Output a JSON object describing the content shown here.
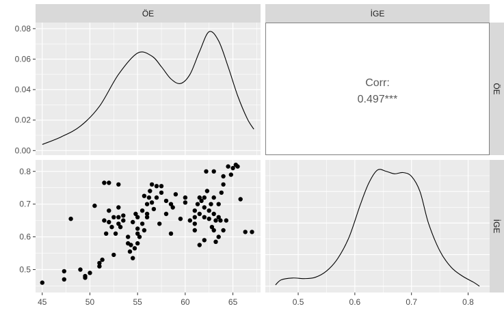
{
  "strips": {
    "col1": "ÖE",
    "col2": "İGE",
    "row1": "ÖE",
    "row2": "İGE"
  },
  "corr": {
    "label": "Corr:",
    "value": "0.497***"
  },
  "colors": {
    "panel_bg": "#ebebeb",
    "grid": "#ffffff",
    "strip_bg": "#d9d9d9",
    "line": "#000000",
    "point": "#000000"
  },
  "chart_data": [
    {
      "type": "line",
      "panel": "density ÖE",
      "x": [
        45,
        47,
        49,
        51,
        53,
        55,
        56.5,
        57.5,
        58.5,
        59.5,
        60.5,
        61.5,
        62.5,
        63.5,
        64.5,
        65.5,
        66.5,
        67.2
      ],
      "values": [
        0.004,
        0.009,
        0.016,
        0.029,
        0.05,
        0.064,
        0.062,
        0.055,
        0.047,
        0.044,
        0.05,
        0.065,
        0.078,
        0.072,
        0.055,
        0.036,
        0.021,
        0.014
      ],
      "xlim": [
        44.3,
        67.9
      ],
      "ylim": [
        -0.003,
        0.084
      ],
      "y_ticks": [
        0.0,
        0.02,
        0.04,
        0.06,
        0.08
      ],
      "y_tick_labels": [
        "0.00",
        "0.02",
        "0.04",
        "0.06",
        "0.08"
      ],
      "grid": true
    },
    {
      "type": "scatter",
      "panel": "ÖE vs İGE",
      "points": [
        [
          45,
          0.46
        ],
        [
          47.3,
          0.495
        ],
        [
          47.3,
          0.47
        ],
        [
          48,
          0.655
        ],
        [
          49,
          0.5
        ],
        [
          49.5,
          0.48
        ],
        [
          49.5,
          0.475
        ],
        [
          50,
          0.49
        ],
        [
          50.5,
          0.695
        ],
        [
          51,
          0.51
        ],
        [
          51,
          0.52
        ],
        [
          51.3,
          0.53
        ],
        [
          51.5,
          0.765
        ],
        [
          51.5,
          0.65
        ],
        [
          51.7,
          0.61
        ],
        [
          52,
          0.765
        ],
        [
          52,
          0.68
        ],
        [
          52,
          0.645
        ],
        [
          52.3,
          0.63
        ],
        [
          52.5,
          0.66
        ],
        [
          52.5,
          0.545
        ],
        [
          52.7,
          0.61
        ],
        [
          53,
          0.69
        ],
        [
          53,
          0.64
        ],
        [
          53,
          0.66
        ],
        [
          53,
          0.76
        ],
        [
          53.2,
          0.63
        ],
        [
          53.5,
          0.65
        ],
        [
          53.5,
          0.665
        ],
        [
          54,
          0.58
        ],
        [
          54,
          0.6
        ],
        [
          54.2,
          0.555
        ],
        [
          54.3,
          0.575
        ],
        [
          54.5,
          0.535
        ],
        [
          54.5,
          0.645
        ],
        [
          54.7,
          0.565
        ],
        [
          54.8,
          0.67
        ],
        [
          55,
          0.61
        ],
        [
          55,
          0.58
        ],
        [
          55,
          0.625
        ],
        [
          55,
          0.66
        ],
        [
          55.2,
          0.6
        ],
        [
          55.5,
          0.68
        ],
        [
          55.5,
          0.64
        ],
        [
          55.7,
          0.62
        ],
        [
          55.7,
          0.725
        ],
        [
          56,
          0.67
        ],
        [
          56,
          0.7
        ],
        [
          56,
          0.66
        ],
        [
          56.2,
          0.72
        ],
        [
          56.3,
          0.74
        ],
        [
          56.5,
          0.705
        ],
        [
          56.5,
          0.76
        ],
        [
          56.7,
          0.685
        ],
        [
          57,
          0.72
        ],
        [
          57,
          0.755
        ],
        [
          57.3,
          0.64
        ],
        [
          57.5,
          0.735
        ],
        [
          57.5,
          0.755
        ],
        [
          58,
          0.67
        ],
        [
          58,
          0.71
        ],
        [
          58.5,
          0.7
        ],
        [
          58.5,
          0.61
        ],
        [
          58.7,
          0.69
        ],
        [
          59,
          0.73
        ],
        [
          59.5,
          0.655
        ],
        [
          60,
          0.72
        ],
        [
          60,
          0.705
        ],
        [
          60.5,
          0.65
        ],
        [
          61,
          0.68
        ],
        [
          61,
          0.66
        ],
        [
          61,
          0.62
        ],
        [
          61,
          0.64
        ],
        [
          61.3,
          0.7
        ],
        [
          61.5,
          0.72
        ],
        [
          61.5,
          0.575
        ],
        [
          61.5,
          0.67
        ],
        [
          61.7,
          0.71
        ],
        [
          62,
          0.59
        ],
        [
          62,
          0.72
        ],
        [
          62,
          0.69
        ],
        [
          62,
          0.66
        ],
        [
          62.2,
          0.8
        ],
        [
          62.3,
          0.74
        ],
        [
          62.5,
          0.68
        ],
        [
          62.5,
          0.655
        ],
        [
          62.7,
          0.7
        ],
        [
          62.8,
          0.63
        ],
        [
          63,
          0.8
        ],
        [
          63,
          0.72
        ],
        [
          63,
          0.62
        ],
        [
          63,
          0.67
        ],
        [
          63.2,
          0.585
        ],
        [
          63.2,
          0.65
        ],
        [
          63.5,
          0.7
        ],
        [
          63.5,
          0.6
        ],
        [
          63.5,
          0.66
        ],
        [
          63.7,
          0.65
        ],
        [
          63.8,
          0.735
        ],
        [
          64,
          0.785
        ],
        [
          64,
          0.76
        ],
        [
          64,
          0.62
        ],
        [
          64.3,
          0.65
        ],
        [
          64.5,
          0.815
        ],
        [
          64.8,
          0.79
        ],
        [
          65,
          0.81
        ],
        [
          65.3,
          0.82
        ],
        [
          65.5,
          0.815
        ],
        [
          65.8,
          0.715
        ],
        [
          66.3,
          0.615
        ],
        [
          67,
          0.615
        ]
      ],
      "xlim": [
        44.3,
        67.9
      ],
      "ylim": [
        0.43,
        0.835
      ],
      "x_ticks": [
        45,
        50,
        55,
        60,
        65
      ],
      "x_tick_labels": [
        "45",
        "50",
        "55",
        "60",
        "65"
      ],
      "y_ticks": [
        0.5,
        0.6,
        0.7,
        0.8
      ],
      "y_tick_labels": [
        "0.5",
        "0.6",
        "0.7",
        "0.8"
      ],
      "grid": true
    },
    {
      "type": "line",
      "panel": "density İGE",
      "x": [
        0.46,
        0.47,
        0.49,
        0.51,
        0.53,
        0.55,
        0.57,
        0.59,
        0.61,
        0.625,
        0.64,
        0.655,
        0.67,
        0.685,
        0.7,
        0.715,
        0.73,
        0.75,
        0.77,
        0.79,
        0.81,
        0.82
      ],
      "values": [
        0.06,
        0.1,
        0.115,
        0.11,
        0.12,
        0.17,
        0.27,
        0.44,
        0.7,
        0.87,
        0.97,
        0.96,
        0.94,
        0.95,
        0.92,
        0.8,
        0.55,
        0.33,
        0.2,
        0.13,
        0.08,
        0.05
      ],
      "density_scale": "relative",
      "xlim": [
        0.442,
        0.838
      ],
      "x_ticks": [
        0.5,
        0.6,
        0.7,
        0.8
      ],
      "x_tick_labels": [
        "0.5",
        "0.6",
        "0.7",
        "0.8"
      ],
      "grid": true
    }
  ]
}
